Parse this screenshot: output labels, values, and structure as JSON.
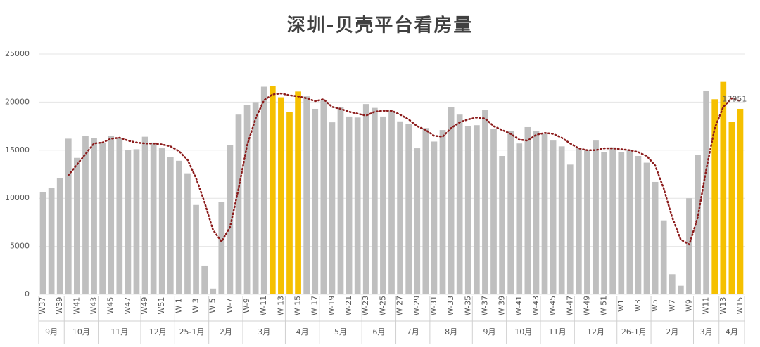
{
  "chart_data": {
    "type": "bar",
    "title": "深圳-贝壳平台看房量",
    "groups": [
      {
        "label": "9月",
        "categories": [
          "W37",
          null,
          "W39"
        ]
      },
      {
        "label": "10月",
        "categories": [
          null,
          "W41",
          null,
          "W43"
        ]
      },
      {
        "label": "11月",
        "categories": [
          null,
          "W45",
          null,
          "W47",
          null
        ]
      },
      {
        "label": "12月",
        "categories": [
          "W49",
          null,
          "W51",
          null
        ]
      },
      {
        "label": "25-1月",
        "categories": [
          "W-1",
          null,
          "W-3",
          null
        ]
      },
      {
        "label": "2月",
        "categories": [
          "W-5",
          null,
          "W-7",
          null
        ]
      },
      {
        "label": "3月",
        "categories": [
          "W-9",
          null,
          "W-11",
          null,
          "W-13"
        ]
      },
      {
        "label": "4月",
        "categories": [
          null,
          "W-15",
          null,
          "W-17"
        ]
      },
      {
        "label": "5月",
        "categories": [
          null,
          "W-19",
          null,
          "W-21",
          null
        ]
      },
      {
        "label": "6月",
        "categories": [
          "W-23",
          null,
          "W-25",
          null
        ]
      },
      {
        "label": "7月",
        "categories": [
          "W-27",
          null,
          "W-29",
          null
        ]
      },
      {
        "label": "8月",
        "categories": [
          "W-31",
          null,
          "W-33",
          null,
          "W-35"
        ]
      },
      {
        "label": "9月",
        "categories": [
          null,
          "W-37",
          null,
          "W-39"
        ]
      },
      {
        "label": "10月",
        "categories": [
          null,
          "W-41",
          null,
          "W-43"
        ]
      },
      {
        "label": "11月",
        "categories": [
          null,
          "W-45",
          null,
          "W-47"
        ]
      },
      {
        "label": "12月",
        "categories": [
          null,
          "W-49",
          null,
          "W-51",
          null
        ]
      },
      {
        "label": "26-1月",
        "categories": [
          "W1",
          null,
          "W3",
          null
        ]
      },
      {
        "label": "2月",
        "categories": [
          "W5",
          null,
          "W7",
          null,
          "W9"
        ]
      },
      {
        "label": "3月",
        "categories": [
          null,
          "W11",
          null
        ]
      },
      {
        "label": "4月",
        "categories": [
          "W13",
          null,
          "W15"
        ]
      }
    ],
    "values": [
      10600,
      11100,
      12100,
      16200,
      14200,
      16500,
      16300,
      15800,
      16500,
      16300,
      15000,
      15100,
      16400,
      15800,
      15200,
      14300,
      13900,
      12600,
      9300,
      3000,
      600,
      9600,
      15500,
      18700,
      19700,
      20000,
      21600,
      21700,
      20500,
      19000,
      21100,
      20600,
      19300,
      20200,
      17900,
      19500,
      18500,
      18400,
      19800,
      19400,
      18500,
      19100,
      18000,
      17700,
      15200,
      17300,
      15900,
      17100,
      19500,
      18700,
      17500,
      17600,
      19200,
      17200,
      14400,
      17000,
      15700,
      17400,
      17000,
      16700,
      16000,
      15400,
      13500,
      15200,
      15000,
      16000,
      14800,
      15300,
      14800,
      15000,
      14400,
      13700,
      11700,
      7700,
      2100,
      900,
      10000,
      14500,
      21200,
      20300,
      22100,
      17951,
      19300
    ],
    "value_labels": [
      null,
      null,
      null,
      null,
      null,
      null,
      null,
      null,
      null,
      null,
      null,
      null,
      null,
      null,
      null,
      null,
      null,
      null,
      null,
      null,
      null,
      null,
      null,
      null,
      null,
      null,
      null,
      null,
      null,
      null,
      null,
      null,
      null,
      null,
      null,
      null,
      null,
      null,
      null,
      null,
      null,
      null,
      null,
      null,
      null,
      null,
      null,
      null,
      null,
      null,
      null,
      null,
      null,
      null,
      null,
      null,
      null,
      null,
      null,
      null,
      null,
      null,
      null,
      null,
      null,
      null,
      null,
      null,
      null,
      null,
      null,
      null,
      null,
      null,
      null,
      null,
      null,
      null,
      null,
      null,
      null,
      "17951",
      null
    ],
    "colors": [
      "#bfbfbf",
      "#bfbfbf",
      "#bfbfbf",
      "#bfbfbf",
      "#bfbfbf",
      "#bfbfbf",
      "#bfbfbf",
      "#bfbfbf",
      "#bfbfbf",
      "#bfbfbf",
      "#bfbfbf",
      "#bfbfbf",
      "#bfbfbf",
      "#bfbfbf",
      "#bfbfbf",
      "#bfbfbf",
      "#bfbfbf",
      "#bfbfbf",
      "#bfbfbf",
      "#bfbfbf",
      "#bfbfbf",
      "#bfbfbf",
      "#bfbfbf",
      "#bfbfbf",
      "#bfbfbf",
      "#bfbfbf",
      "#bfbfbf",
      "#f5c000",
      "#f5c000",
      "#f5c000",
      "#f5c000",
      "#bfbfbf",
      "#bfbfbf",
      "#bfbfbf",
      "#bfbfbf",
      "#bfbfbf",
      "#bfbfbf",
      "#bfbfbf",
      "#bfbfbf",
      "#bfbfbf",
      "#bfbfbf",
      "#bfbfbf",
      "#bfbfbf",
      "#bfbfbf",
      "#bfbfbf",
      "#bfbfbf",
      "#bfbfbf",
      "#bfbfbf",
      "#bfbfbf",
      "#bfbfbf",
      "#bfbfbf",
      "#bfbfbf",
      "#bfbfbf",
      "#bfbfbf",
      "#bfbfbf",
      "#bfbfbf",
      "#bfbfbf",
      "#bfbfbf",
      "#bfbfbf",
      "#bfbfbf",
      "#bfbfbf",
      "#bfbfbf",
      "#bfbfbf",
      "#bfbfbf",
      "#bfbfbf",
      "#bfbfbf",
      "#bfbfbf",
      "#bfbfbf",
      "#bfbfbf",
      "#bfbfbf",
      "#bfbfbf",
      "#bfbfbf",
      "#bfbfbf",
      "#bfbfbf",
      "#bfbfbf",
      "#bfbfbf",
      "#bfbfbf",
      "#bfbfbf",
      "#bfbfbf",
      "#f5c000",
      "#f5c000",
      "#f5c000",
      "#f5c000"
    ],
    "trend": {
      "color": "#8b1a1a",
      "values": [
        null,
        null,
        null,
        12400,
        13500,
        14600,
        15700,
        15800,
        16200,
        16300,
        16000,
        15800,
        15700,
        15700,
        15600,
        15400,
        14900,
        14000,
        12100,
        9600,
        6700,
        5500,
        7000,
        11000,
        15500,
        18300,
        20200,
        20800,
        20900,
        20700,
        20600,
        20400,
        20100,
        20300,
        19500,
        19300,
        19000,
        18800,
        18600,
        19000,
        19100,
        19100,
        18700,
        18200,
        17500,
        17100,
        16500,
        16400,
        17300,
        17900,
        18200,
        18400,
        18300,
        17500,
        17100,
        16700,
        16100,
        16000,
        16600,
        16800,
        16700,
        16300,
        15700,
        15200,
        15000,
        15000,
        15200,
        15200,
        15100,
        15000,
        14800,
        14400,
        13400,
        11000,
        8000,
        5700,
        5200,
        8000,
        13000,
        17300,
        19500,
        20400,
        20100
      ]
    },
    "ylim": [
      0,
      25000
    ],
    "yticks": [
      0,
      5000,
      10000,
      15000,
      20000,
      25000
    ],
    "grid": true
  }
}
